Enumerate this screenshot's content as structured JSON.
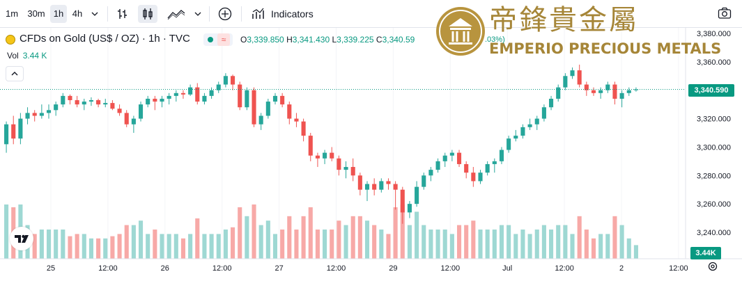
{
  "toolbar": {
    "intervals": [
      "1m",
      "30m",
      "1h",
      "4h"
    ],
    "active_interval": "1h",
    "indicators_label": "Indicators"
  },
  "symbol": {
    "title": "CFDs on Gold (US$ / OZ) · 1h · TVC",
    "change_partial": ".03%)"
  },
  "ohlc": {
    "o_label": "O",
    "o": "3,339.850",
    "h_label": "H",
    "h": "3,341.430",
    "l_label": "L",
    "l": "3,339.225",
    "c_label": "C",
    "c": "3,340.59"
  },
  "volume_legend": {
    "label": "Vol",
    "value": "3.44 K"
  },
  "watermark": {
    "chinese": "帝鋒貴金屬",
    "english": "EMPERIO PRECIOUS METALS"
  },
  "last_price_tag": "3,340.590",
  "volume_tag": "3.44K",
  "colors": {
    "up": "#26a69a",
    "down": "#ef5350",
    "vol_up": "#9ed8d3",
    "vol_down": "#f7a9a7",
    "last_price_line": "#089981"
  },
  "chart_data": {
    "type": "candlestick",
    "ylim": [
      3230,
      3395
    ],
    "y_ticks": [
      3240,
      3260,
      3280,
      3300,
      3320,
      3340,
      3360,
      3380
    ],
    "y_tick_labels": [
      "3,240.000",
      "3,260.000",
      "3,280.000",
      "3,300.000",
      "3,320.000",
      "3,340.000",
      "3,360.000",
      "3,380.000"
    ],
    "x_tick_labels": [
      "25",
      "12:00",
      "26",
      "12:00",
      "27",
      "12:00",
      "29",
      "12:00",
      "Jul",
      "12:00",
      "2",
      "12:00"
    ],
    "last_price": 3340.59,
    "candles": [
      [
        3302,
        3318,
        3296,
        3316
      ],
      [
        3316,
        3322,
        3302,
        3306
      ],
      [
        3306,
        3324,
        3302,
        3320
      ],
      [
        3320,
        3328,
        3316,
        3324
      ],
      [
        3324,
        3326,
        3318,
        3322
      ],
      [
        3322,
        3330,
        3320,
        3324
      ],
      [
        3324,
        3330,
        3320,
        3326
      ],
      [
        3326,
        3332,
        3322,
        3330
      ],
      [
        3330,
        3338,
        3328,
        3336
      ],
      [
        3336,
        3337,
        3330,
        3333
      ],
      [
        3333,
        3336,
        3328,
        3330
      ],
      [
        3330,
        3334,
        3326,
        3332
      ],
      [
        3332,
        3335,
        3329,
        3333
      ],
      [
        3333,
        3334,
        3328,
        3330
      ],
      [
        3330,
        3334,
        3328,
        3331
      ],
      [
        3331,
        3333,
        3326,
        3327
      ],
      [
        3327,
        3330,
        3322,
        3324
      ],
      [
        3324,
        3326,
        3314,
        3316
      ],
      [
        3316,
        3322,
        3310,
        3320
      ],
      [
        3320,
        3332,
        3318,
        3330
      ],
      [
        3330,
        3336,
        3328,
        3334
      ],
      [
        3334,
        3336,
        3326,
        3332
      ],
      [
        3332,
        3336,
        3328,
        3334
      ],
      [
        3334,
        3338,
        3330,
        3336
      ],
      [
        3336,
        3340,
        3332,
        3338
      ],
      [
        3338,
        3340,
        3334,
        3337
      ],
      [
        3337,
        3344,
        3336,
        3342
      ],
      [
        3342,
        3345,
        3330,
        3332
      ],
      [
        3332,
        3338,
        3330,
        3336
      ],
      [
        3336,
        3342,
        3334,
        3340
      ],
      [
        3340,
        3346,
        3338,
        3344
      ],
      [
        3344,
        3352,
        3342,
        3350
      ],
      [
        3350,
        3351,
        3340,
        3344
      ],
      [
        3344,
        3346,
        3326,
        3328
      ],
      [
        3328,
        3342,
        3326,
        3340
      ],
      [
        3340,
        3342,
        3314,
        3316
      ],
      [
        3316,
        3324,
        3312,
        3322
      ],
      [
        3322,
        3334,
        3320,
        3332
      ],
      [
        3332,
        3338,
        3330,
        3336
      ],
      [
        3336,
        3338,
        3328,
        3330
      ],
      [
        3330,
        3332,
        3316,
        3320
      ],
      [
        3320,
        3324,
        3314,
        3318
      ],
      [
        3318,
        3320,
        3304,
        3308
      ],
      [
        3308,
        3310,
        3290,
        3294
      ],
      [
        3294,
        3296,
        3286,
        3292
      ],
      [
        3292,
        3298,
        3288,
        3296
      ],
      [
        3296,
        3300,
        3290,
        3292
      ],
      [
        3292,
        3294,
        3280,
        3284
      ],
      [
        3284,
        3290,
        3278,
        3286
      ],
      [
        3286,
        3292,
        3276,
        3280
      ],
      [
        3280,
        3282,
        3266,
        3270
      ],
      [
        3270,
        3276,
        3262,
        3274
      ],
      [
        3274,
        3278,
        3266,
        3270
      ],
      [
        3270,
        3278,
        3268,
        3276
      ],
      [
        3276,
        3278,
        3270,
        3274
      ],
      [
        3274,
        3276,
        3256,
        3270
      ],
      [
        3270,
        3272,
        3246,
        3254
      ],
      [
        3254,
        3262,
        3250,
        3260
      ],
      [
        3260,
        3276,
        3258,
        3272
      ],
      [
        3272,
        3282,
        3270,
        3280
      ],
      [
        3280,
        3286,
        3276,
        3284
      ],
      [
        3284,
        3292,
        3282,
        3290
      ],
      [
        3290,
        3296,
        3286,
        3294
      ],
      [
        3294,
        3298,
        3290,
        3296
      ],
      [
        3296,
        3298,
        3286,
        3288
      ],
      [
        3288,
        3290,
        3278,
        3282
      ],
      [
        3282,
        3286,
        3272,
        3276
      ],
      [
        3276,
        3284,
        3274,
        3282
      ],
      [
        3282,
        3290,
        3280,
        3288
      ],
      [
        3288,
        3292,
        3282,
        3290
      ],
      [
        3290,
        3300,
        3288,
        3298
      ],
      [
        3298,
        3308,
        3296,
        3306
      ],
      [
        3306,
        3312,
        3304,
        3308
      ],
      [
        3308,
        3316,
        3306,
        3314
      ],
      [
        3314,
        3320,
        3312,
        3316
      ],
      [
        3316,
        3322,
        3312,
        3320
      ],
      [
        3320,
        3330,
        3318,
        3328
      ],
      [
        3328,
        3336,
        3326,
        3334
      ],
      [
        3334,
        3344,
        3332,
        3342
      ],
      [
        3342,
        3352,
        3340,
        3350
      ],
      [
        3350,
        3356,
        3348,
        3354
      ],
      [
        3354,
        3358,
        3342,
        3344
      ],
      [
        3344,
        3346,
        3336,
        3340
      ],
      [
        3340,
        3342,
        3336,
        3338
      ],
      [
        3338,
        3342,
        3334,
        3340
      ],
      [
        3340,
        3346,
        3338,
        3344
      ],
      [
        3344,
        3346,
        3330,
        3334
      ],
      [
        3334,
        3340,
        3328,
        3338
      ],
      [
        3338,
        3342,
        3336,
        3340
      ],
      [
        3340,
        3342,
        3339,
        3340.59
      ]
    ]
  }
}
